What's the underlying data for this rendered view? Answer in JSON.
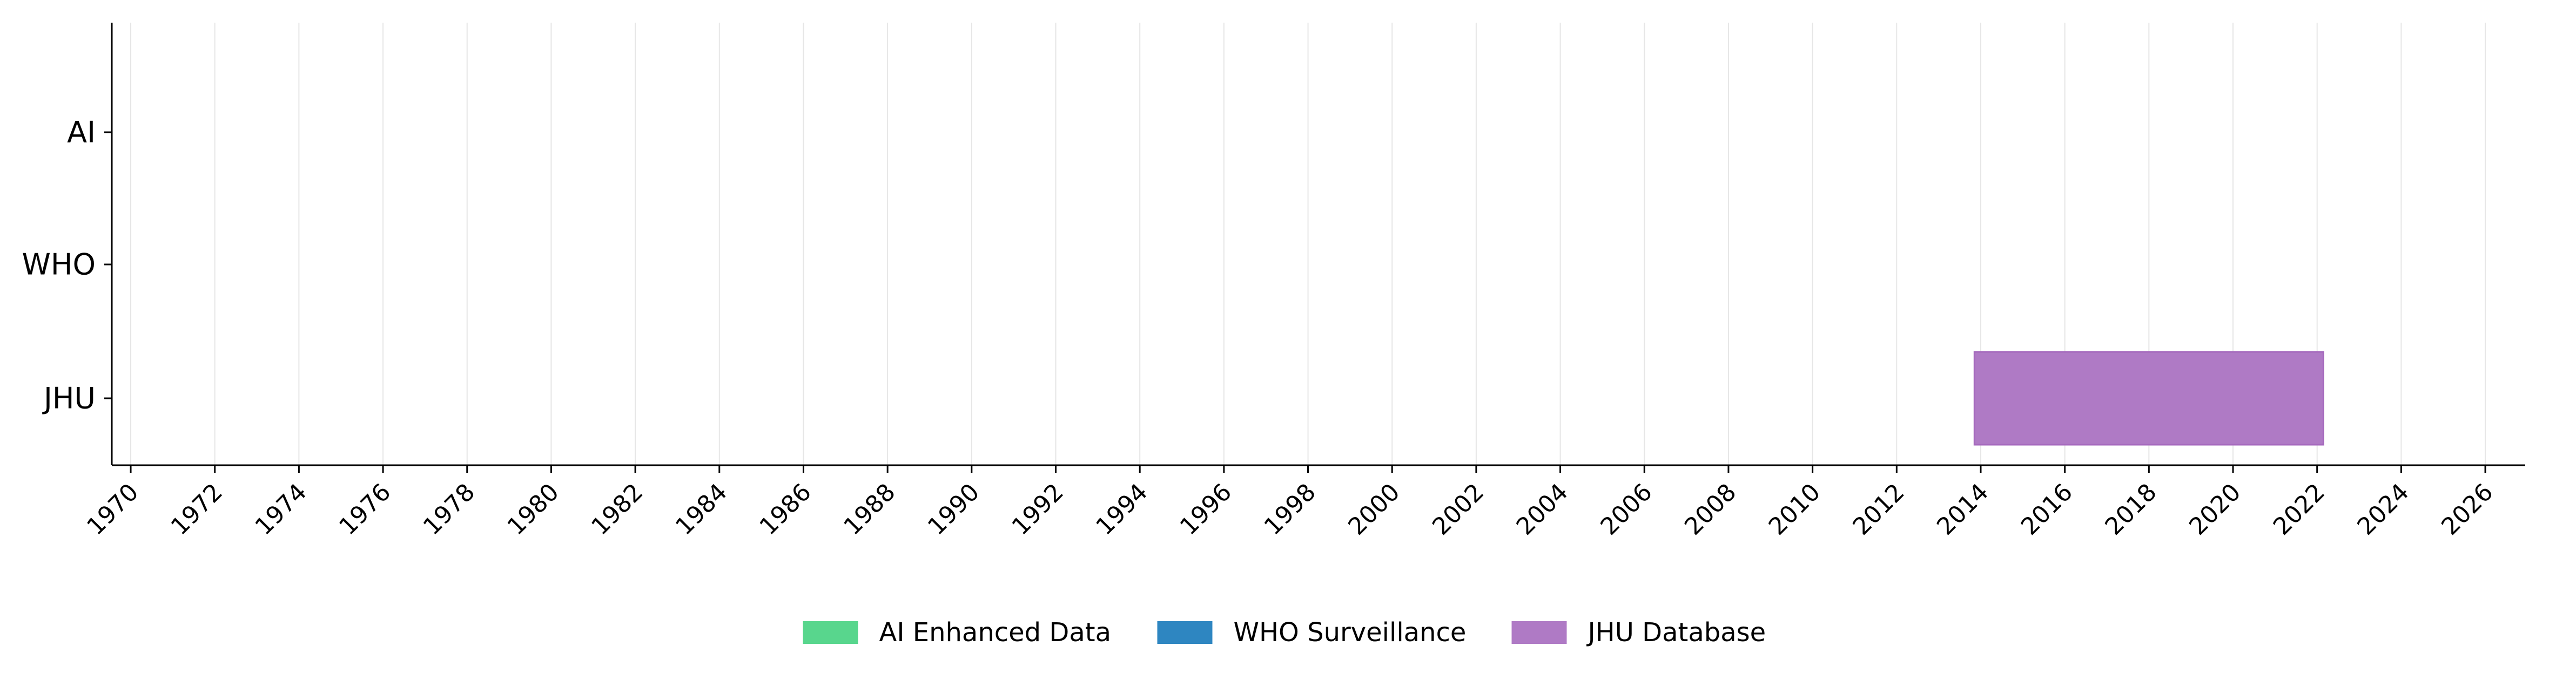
{
  "chart_data": {
    "type": "bar",
    "orientation": "horizontal",
    "categories": [
      "AI",
      "WHO",
      "JHU"
    ],
    "x_ticks": [
      "1970",
      "1972",
      "1974",
      "1976",
      "1978",
      "1980",
      "1982",
      "1984",
      "1986",
      "1988",
      "1990",
      "1992",
      "1994",
      "1996",
      "1998",
      "2000",
      "2002",
      "2004",
      "2006",
      "2008",
      "2010",
      "2012",
      "2014",
      "2016",
      "2018",
      "2020",
      "2022",
      "2024",
      "2026"
    ],
    "xlim": [
      1969.55,
      2026.95
    ],
    "grid": "x",
    "legend_position": "bottom-center",
    "series": [
      {
        "name": "AI Enhanced Data",
        "category": "AI",
        "color": "#58d68d",
        "ranges": []
      },
      {
        "name": "WHO Surveillance",
        "category": "WHO",
        "color": "#2e86c1",
        "ranges": []
      },
      {
        "name": "JHU Database",
        "category": "JHU",
        "color": "#af7ac5",
        "ranges": [
          [
            2013.85,
            2022.15
          ]
        ]
      }
    ],
    "title": ""
  }
}
